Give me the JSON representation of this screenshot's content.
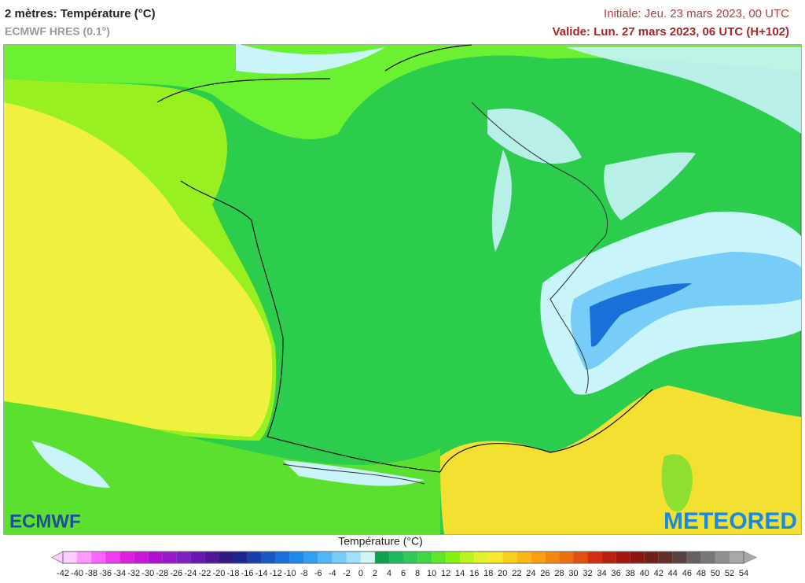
{
  "header": {
    "title": "2 mètres: Température (°C)",
    "subtitle": "ECMWF HRES (0.1°)",
    "initial": "Initiale: Jeu. 23 mars 2023, 00 UTC",
    "valid": "Valide: Lun. 27 mars 2023, 06 UTC (H+102)"
  },
  "logos": {
    "left": "ECMWF",
    "right": "METEORED"
  },
  "legend": {
    "title": "Température (°C)",
    "ticks": [
      -42,
      -40,
      -38,
      -36,
      -34,
      -32,
      -30,
      -28,
      -26,
      -24,
      -22,
      -20,
      -18,
      -16,
      -14,
      -12,
      -10,
      -8,
      -6,
      -4,
      -2,
      0,
      2,
      4,
      6,
      8,
      10,
      12,
      14,
      16,
      18,
      20,
      22,
      24,
      26,
      28,
      30,
      32,
      34,
      36,
      38,
      40,
      42,
      44,
      46,
      48,
      50,
      52,
      54
    ],
    "colors": [
      "#ffccff",
      "#ff99ff",
      "#ff66ff",
      "#f03cf0",
      "#e020e0",
      "#c818d8",
      "#b010d0",
      "#9818c8",
      "#8020c0",
      "#6818b0",
      "#501898",
      "#301880",
      "#1a2890",
      "#1840a8",
      "#1858c0",
      "#1870d8",
      "#2088e8",
      "#30a0f0",
      "#50b8f8",
      "#78ccf8",
      "#a0e0fa",
      "#d0f5f8",
      "#10a050",
      "#20b860",
      "#30c858",
      "#40d840",
      "#60e828",
      "#88f010",
      "#b8f420",
      "#e0f030",
      "#f8e830",
      "#f8d020",
      "#f8b818",
      "#f8a010",
      "#f08810",
      "#e87010",
      "#e05010",
      "#d03010",
      "#b82010",
      "#a01810",
      "#881810",
      "#702018",
      "#603028",
      "#584040",
      "#686060",
      "#787878",
      "#909090",
      "#a8a8a8"
    ]
  }
}
